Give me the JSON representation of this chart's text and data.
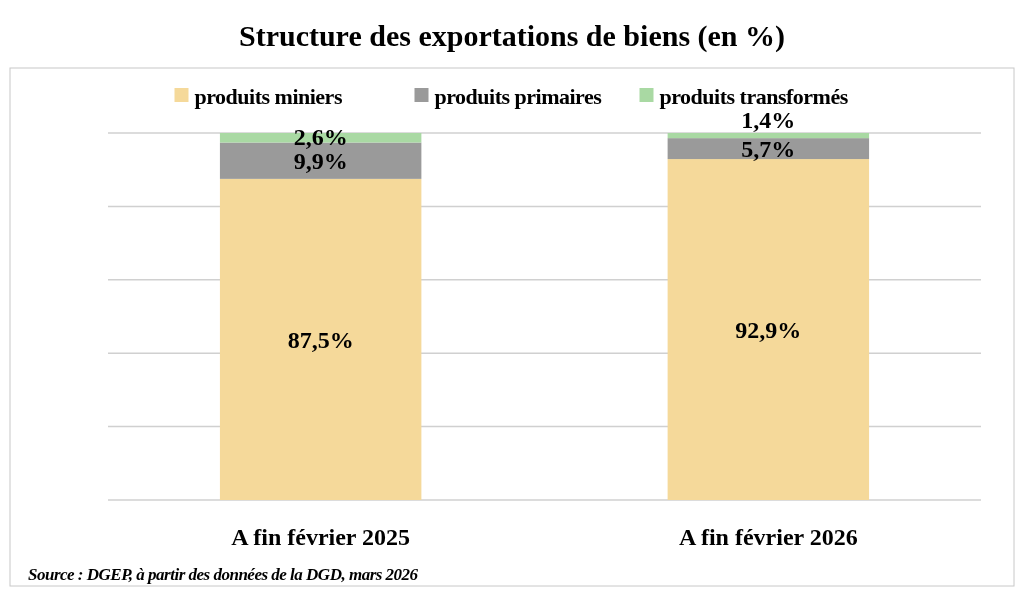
{
  "chart_data": {
    "type": "bar",
    "stacked": true,
    "title": "Structure des exportations de biens (en %)",
    "categories": [
      "A fin février 2025",
      "A fin février 2026"
    ],
    "series": [
      {
        "name": "produits miniers",
        "color": "#f5d99a",
        "values": [
          87.5,
          92.9
        ],
        "value_labels": [
          "87,5%",
          "92,9%"
        ]
      },
      {
        "name": "produits primaires",
        "color": "#9a9a9a",
        "values": [
          9.9,
          5.7
        ],
        "value_labels": [
          "9,9%",
          "5,7%"
        ]
      },
      {
        "name": "produits transformés",
        "color": "#a9d9a3",
        "values": [
          2.6,
          1.4
        ],
        "value_labels": [
          "2,6%",
          "1,4%"
        ]
      }
    ],
    "tick_labels": "x",
    "grid": "y",
    "legend": "top",
    "annotations": [
      "Source : DGEP, à partir des données de la DGD, mars 2026"
    ]
  }
}
